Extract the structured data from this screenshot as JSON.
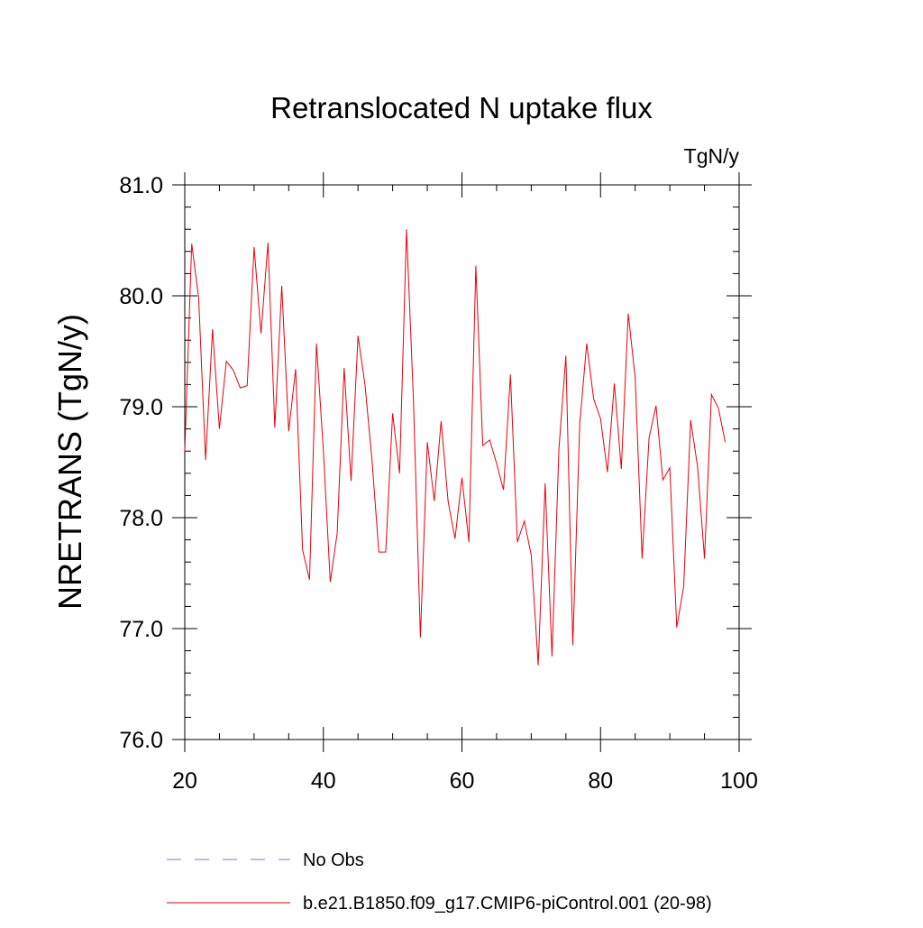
{
  "chart_data": {
    "type": "line",
    "title": "Retranslocated N uptake flux",
    "units": "TgN/y",
    "ylabel": "NRETRANS  (TgN/y)",
    "xlabel": "",
    "xlim": [
      20,
      100
    ],
    "ylim": [
      76.0,
      81.0
    ],
    "xticks": [
      20,
      40,
      60,
      80,
      100
    ],
    "yticks": [
      76.0,
      77.0,
      78.0,
      79.0,
      80.0,
      81.0
    ],
    "grid": false,
    "legend": [
      {
        "name": "No Obs",
        "style": "dashed",
        "color": "#7777dd"
      },
      {
        "name": "b.e21.B1850.f09_g17.CMIP6-piControl.001 (20-98)",
        "style": "solid",
        "color": "#e8000b"
      }
    ],
    "series": [
      {
        "name": "b.e21.B1850.f09_g17.CMIP6-piControl.001 (20-98)",
        "color": "#e8000b",
        "x": [
          20,
          21,
          22,
          23,
          24,
          25,
          26,
          27,
          28,
          29,
          30,
          31,
          32,
          33,
          34,
          35,
          36,
          37,
          38,
          39,
          40,
          41,
          42,
          43,
          44,
          45,
          46,
          47,
          48,
          49,
          50,
          51,
          52,
          53,
          54,
          55,
          56,
          57,
          58,
          59,
          60,
          61,
          62,
          63,
          64,
          65,
          66,
          67,
          68,
          69,
          70,
          71,
          72,
          73,
          74,
          75,
          76,
          77,
          78,
          79,
          80,
          81,
          82,
          83,
          84,
          85,
          86,
          87,
          88,
          89,
          90,
          91,
          92,
          93,
          94,
          95,
          96,
          97,
          98
        ],
        "values": [
          78.6,
          80.47,
          79.98,
          78.52,
          79.7,
          78.8,
          79.41,
          79.33,
          79.17,
          79.19,
          80.44,
          79.66,
          80.48,
          78.81,
          80.09,
          78.78,
          79.34,
          77.71,
          77.44,
          79.57,
          78.6,
          77.42,
          77.86,
          79.35,
          78.33,
          79.64,
          79.2,
          78.53,
          77.69,
          77.69,
          78.94,
          78.4,
          80.6,
          79.06,
          76.92,
          78.68,
          78.15,
          78.87,
          78.15,
          77.81,
          78.36,
          77.78,
          80.27,
          78.65,
          78.7,
          78.49,
          78.25,
          79.29,
          77.78,
          77.97,
          77.66,
          76.67,
          78.31,
          76.75,
          78.62,
          79.46,
          76.85,
          78.85,
          79.57,
          79.07,
          78.89,
          78.41,
          79.21,
          78.44,
          79.84,
          79.26,
          77.63,
          78.72,
          79.01,
          78.34,
          78.45,
          77.01,
          77.38,
          78.88,
          78.46,
          77.63,
          79.11,
          78.99,
          78.68
        ]
      }
    ]
  }
}
